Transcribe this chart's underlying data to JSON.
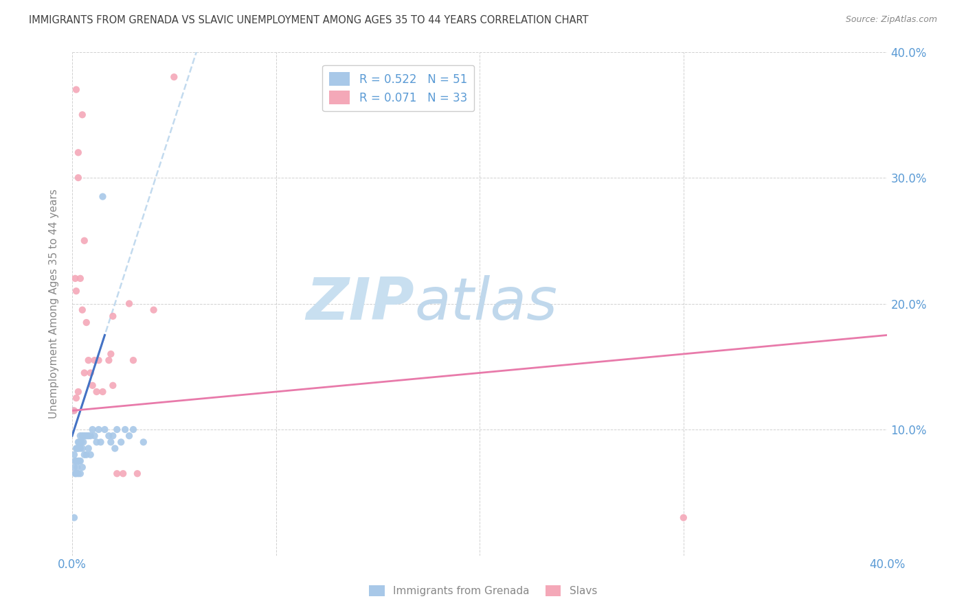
{
  "title": "IMMIGRANTS FROM GRENADA VS SLAVIC UNEMPLOYMENT AMONG AGES 35 TO 44 YEARS CORRELATION CHART",
  "source": "Source: ZipAtlas.com",
  "ylabel_label": "Unemployment Among Ages 35 to 44 years",
  "xlim": [
    0,
    0.4
  ],
  "ylim": [
    0,
    0.4
  ],
  "legend_labels": [
    "Immigrants from Grenada",
    "Slavs"
  ],
  "legend_R_blue": "R = 0.522",
  "legend_N_blue": "N = 51",
  "legend_R_pink": "R = 0.071",
  "legend_N_pink": "N = 33",
  "blue_scatter_color": "#a8c8e8",
  "pink_scatter_color": "#f4a8b8",
  "blue_line_color": "#4472c4",
  "pink_line_color": "#e87aaa",
  "blue_dashed_color": "#b8d4ec",
  "title_color": "#404040",
  "axis_tick_color": "#5b9bd5",
  "ylabel_color": "#888888",
  "watermark_text": "ZIPatlas",
  "watermark_color": "#ddeeff",
  "source_color": "#888888",
  "grenada_x": [
    0.0005,
    0.001,
    0.001,
    0.0015,
    0.0015,
    0.002,
    0.002,
    0.002,
    0.0025,
    0.0025,
    0.003,
    0.003,
    0.003,
    0.003,
    0.0035,
    0.0035,
    0.004,
    0.004,
    0.004,
    0.004,
    0.0045,
    0.005,
    0.005,
    0.005,
    0.0055,
    0.006,
    0.006,
    0.007,
    0.007,
    0.008,
    0.008,
    0.009,
    0.009,
    0.01,
    0.011,
    0.012,
    0.013,
    0.014,
    0.015,
    0.016,
    0.018,
    0.019,
    0.02,
    0.021,
    0.022,
    0.024,
    0.026,
    0.028,
    0.03,
    0.035,
    0.001
  ],
  "grenada_y": [
    0.115,
    0.08,
    0.07,
    0.075,
    0.065,
    0.085,
    0.075,
    0.065,
    0.085,
    0.07,
    0.09,
    0.085,
    0.075,
    0.065,
    0.09,
    0.075,
    0.095,
    0.085,
    0.075,
    0.065,
    0.09,
    0.095,
    0.085,
    0.07,
    0.09,
    0.095,
    0.08,
    0.095,
    0.08,
    0.095,
    0.085,
    0.095,
    0.08,
    0.1,
    0.095,
    0.09,
    0.1,
    0.09,
    0.285,
    0.1,
    0.095,
    0.09,
    0.095,
    0.085,
    0.1,
    0.09,
    0.1,
    0.095,
    0.1,
    0.09,
    0.03
  ],
  "slavs_x": [
    0.001,
    0.0015,
    0.002,
    0.002,
    0.003,
    0.003,
    0.004,
    0.005,
    0.005,
    0.006,
    0.007,
    0.008,
    0.009,
    0.01,
    0.011,
    0.012,
    0.013,
    0.015,
    0.018,
    0.019,
    0.02,
    0.022,
    0.025,
    0.028,
    0.03,
    0.032,
    0.04,
    0.05,
    0.3,
    0.002,
    0.003,
    0.006,
    0.02
  ],
  "slavs_y": [
    0.115,
    0.22,
    0.21,
    0.125,
    0.32,
    0.13,
    0.22,
    0.35,
    0.195,
    0.145,
    0.185,
    0.155,
    0.145,
    0.135,
    0.155,
    0.13,
    0.155,
    0.13,
    0.155,
    0.16,
    0.135,
    0.065,
    0.065,
    0.2,
    0.155,
    0.065,
    0.195,
    0.38,
    0.03,
    0.37,
    0.3,
    0.25,
    0.19
  ],
  "blue_trendline_x": [
    0.0,
    0.4
  ],
  "blue_trendline_y_start": 0.095,
  "blue_trendline_slope": 5.0,
  "pink_trendline_y_start": 0.115,
  "pink_trendline_y_end": 0.175
}
